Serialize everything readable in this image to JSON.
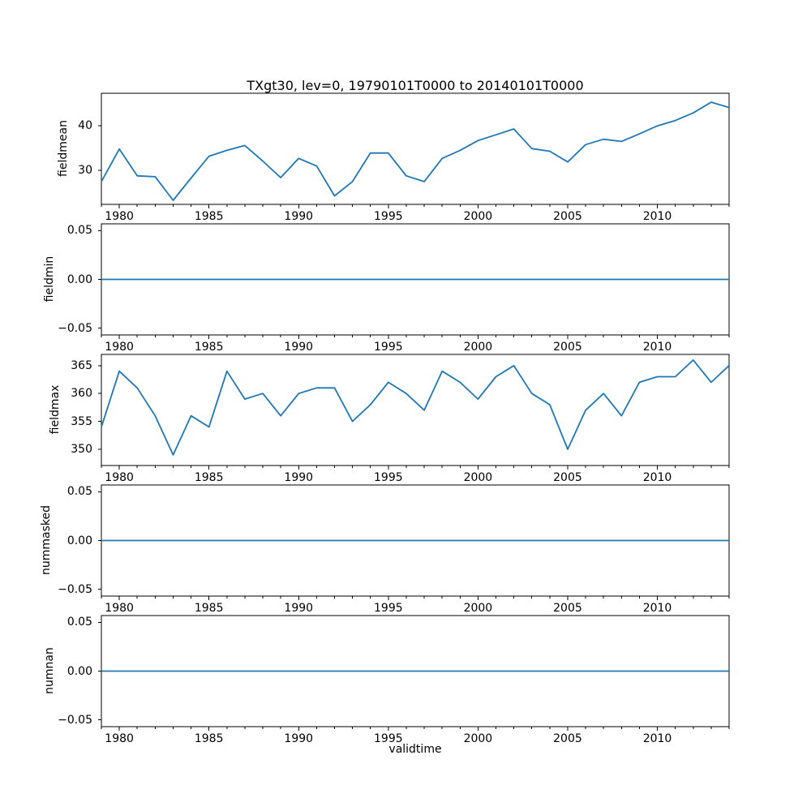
{
  "figure": {
    "line_color": "#1f77b4",
    "background": "#ffffff",
    "text_color": "#000000"
  },
  "chart_data": {
    "type": "line",
    "title": "TXgt30, lev=0, 19790101T0000 to 20140101T0000",
    "xlabel": "validtime",
    "legend": "none",
    "grid": false,
    "xlim": [
      1979,
      2014
    ],
    "x": [
      1979,
      1980,
      1981,
      1982,
      1983,
      1984,
      1985,
      1986,
      1987,
      1988,
      1989,
      1990,
      1991,
      1992,
      1993,
      1994,
      1995,
      1996,
      1997,
      1998,
      1999,
      2000,
      2001,
      2002,
      2003,
      2004,
      2005,
      2006,
      2007,
      2008,
      2009,
      2010,
      2011,
      2012,
      2013,
      2014
    ],
    "xticks": [
      {
        "value": 1980,
        "label": "1980"
      },
      {
        "value": 1985,
        "label": "1985"
      },
      {
        "value": 1990,
        "label": "1990"
      },
      {
        "value": 1995,
        "label": "1995"
      },
      {
        "value": 2000,
        "label": "2000"
      },
      {
        "value": 2005,
        "label": "2005"
      },
      {
        "value": 2010,
        "label": "2010"
      }
    ],
    "subplots": [
      {
        "ylabel": "fieldmean",
        "ylim": [
          22.4,
          47.3
        ],
        "yticks": [
          {
            "value": 40,
            "label": "40"
          },
          {
            "value": 30,
            "label": "30"
          }
        ],
        "values": [
          27.5,
          34.8,
          28.8,
          28.6,
          23.3,
          28.3,
          33.2,
          34.5,
          35.6,
          32.1,
          28.4,
          32.7,
          31.0,
          24.3,
          27.5,
          33.9,
          33.9,
          28.8,
          27.5,
          32.7,
          34.5,
          36.7,
          38.0,
          39.3,
          34.9,
          34.3,
          31.9,
          35.8,
          37.0,
          36.5,
          38.2,
          40.0,
          41.2,
          42.9,
          45.3,
          44.1
        ]
      },
      {
        "ylabel": "fieldmin",
        "ylim": [
          -0.057,
          0.057
        ],
        "yticks": [
          {
            "value": 0.05,
            "label": "0.05"
          },
          {
            "value": 0,
            "label": "0.00"
          },
          {
            "value": -0.05,
            "label": "−0.05"
          }
        ],
        "values": [
          0,
          0,
          0,
          0,
          0,
          0,
          0,
          0,
          0,
          0,
          0,
          0,
          0,
          0,
          0,
          0,
          0,
          0,
          0,
          0,
          0,
          0,
          0,
          0,
          0,
          0,
          0,
          0,
          0,
          0,
          0,
          0,
          0,
          0,
          0,
          0
        ]
      },
      {
        "ylabel": "fieldmax",
        "ylim": [
          347.1,
          367.0
        ],
        "yticks": [
          {
            "value": 365,
            "label": "365"
          },
          {
            "value": 360,
            "label": "360"
          },
          {
            "value": 355,
            "label": "355"
          },
          {
            "value": 350,
            "label": "350"
          }
        ],
        "values": [
          354,
          364,
          361,
          356,
          349,
          356,
          354,
          364,
          359,
          360,
          356,
          360,
          361,
          361,
          355,
          358,
          362,
          360,
          357,
          364,
          362,
          359,
          363,
          365,
          360,
          358,
          350,
          357,
          360,
          356,
          362,
          363,
          363,
          366,
          362,
          365
        ]
      },
      {
        "ylabel": "nummasked",
        "ylim": [
          -0.057,
          0.057
        ],
        "yticks": [
          {
            "value": 0.05,
            "label": "0.05"
          },
          {
            "value": 0,
            "label": "0.00"
          },
          {
            "value": -0.05,
            "label": "−0.05"
          }
        ],
        "values": [
          0,
          0,
          0,
          0,
          0,
          0,
          0,
          0,
          0,
          0,
          0,
          0,
          0,
          0,
          0,
          0,
          0,
          0,
          0,
          0,
          0,
          0,
          0,
          0,
          0,
          0,
          0,
          0,
          0,
          0,
          0,
          0,
          0,
          0,
          0,
          0
        ]
      },
      {
        "ylabel": "numnan",
        "ylim": [
          -0.057,
          0.057
        ],
        "yticks": [
          {
            "value": 0.05,
            "label": "0.05"
          },
          {
            "value": 0,
            "label": "0.00"
          },
          {
            "value": -0.05,
            "label": "−0.05"
          }
        ],
        "values": [
          0,
          0,
          0,
          0,
          0,
          0,
          0,
          0,
          0,
          0,
          0,
          0,
          0,
          0,
          0,
          0,
          0,
          0,
          0,
          0,
          0,
          0,
          0,
          0,
          0,
          0,
          0,
          0,
          0,
          0,
          0,
          0,
          0,
          0,
          0,
          0
        ]
      }
    ]
  }
}
